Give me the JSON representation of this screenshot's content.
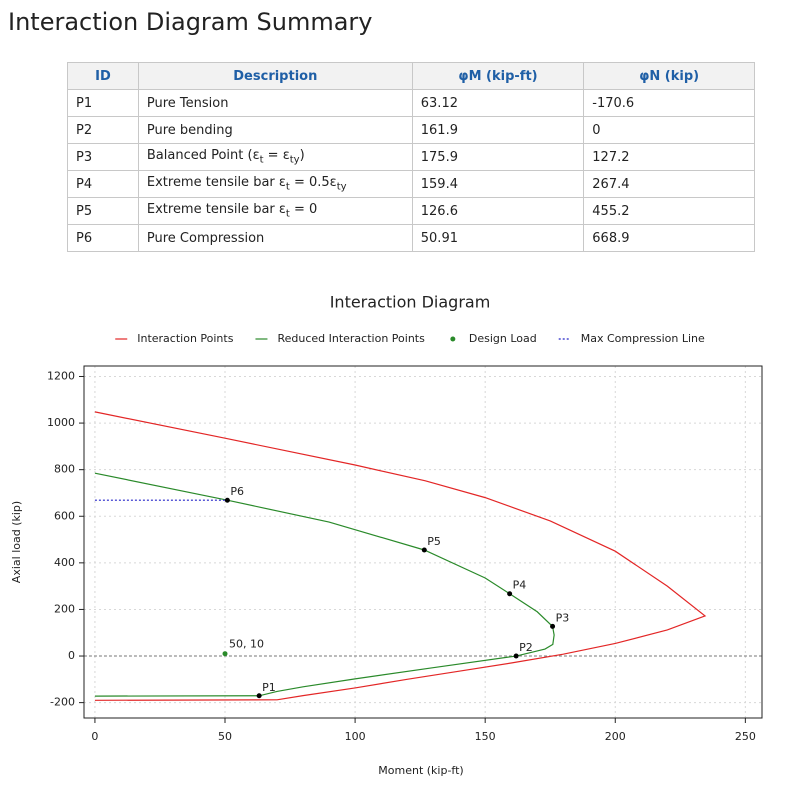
{
  "header": {
    "title": "Interaction Diagram Summary"
  },
  "table": {
    "columns": [
      "ID",
      "Description",
      "φM (kip-ft)",
      "φN (kip)"
    ],
    "rows": [
      [
        "P1",
        [
          "Pure Tension"
        ],
        "63.12",
        "-170.6"
      ],
      [
        "P2",
        [
          "Pure bending"
        ],
        "161.9",
        "0"
      ],
      [
        "P3",
        [
          "Balanced Point (ε",
          "t",
          " = ε",
          "ty",
          ")"
        ],
        "175.9",
        "127.2"
      ],
      [
        "P4",
        [
          "Extreme tensile bar ε",
          "t",
          " = 0.5ε",
          "ty"
        ],
        "159.4",
        "267.4"
      ],
      [
        "P5",
        [
          "Extreme tensile bar ε",
          "t",
          " = 0"
        ],
        "126.6",
        "455.2"
      ],
      [
        "P6",
        [
          "Pure Compression"
        ],
        "50.91",
        "668.9"
      ]
    ]
  },
  "chart_data": {
    "type": "line",
    "title": "Interaction Diagram",
    "x_label": "Moment (kip-ft)",
    "y_label": "Axial load (kip)",
    "xlim": [
      -4.2,
      256.4
    ],
    "ylim": [
      -266,
      1245
    ],
    "xticks": [
      0,
      50,
      100,
      150,
      200,
      250
    ],
    "yticks": [
      -200,
      0,
      200,
      400,
      600,
      800,
      1000,
      1200
    ],
    "grid": true,
    "hlines": [
      0
    ],
    "series": [
      {
        "name": "Interaction Points",
        "color": "#e32626",
        "style": "line",
        "x": [
          0,
          50,
          100,
          127,
          150,
          175,
          200,
          220,
          234.5,
          220,
          200,
          180,
          160,
          140,
          120,
          100,
          80,
          70,
          0
        ],
        "values": [
          1048,
          935,
          820,
          752,
          680,
          580,
          450,
          300,
          172,
          112,
          54,
          8,
          -30,
          -65,
          -100,
          -137,
          -170,
          -188,
          -190
        ]
      },
      {
        "name": "Reduced Interaction Points",
        "color": "#2a8a2a",
        "style": "line",
        "x": [
          0,
          50.91,
          90,
          126.6,
          150,
          159.4,
          170,
          175.9,
          176.5,
          176,
          173,
          161.9,
          130,
          100,
          80,
          70,
          63.12,
          0
        ],
        "values": [
          785,
          668.9,
          575,
          455.2,
          335,
          267.4,
          190,
          127.2,
          90,
          50,
          30,
          0,
          -50,
          -98,
          -132,
          -152,
          -170.6,
          -172
        ]
      },
      {
        "name": "Design Load",
        "color": "#2a8a2a",
        "style": "dot",
        "x": [
          50
        ],
        "values": [
          10
        ],
        "value_labels": [
          "50, 10"
        ]
      },
      {
        "name": "Max Compression Line",
        "color": "#2424c8",
        "style": "dotted",
        "x": [
          0,
          50.91
        ],
        "values": [
          668.9,
          668.9
        ]
      }
    ],
    "key_points": {
      "color": "#000000",
      "labels": [
        "P1",
        "P2",
        "P3",
        "P4",
        "P5",
        "P6"
      ],
      "x": [
        63.12,
        161.9,
        175.9,
        159.4,
        126.6,
        50.91
      ],
      "values": [
        -170.6,
        0,
        127.2,
        267.4,
        455.2,
        668.9
      ]
    }
  }
}
